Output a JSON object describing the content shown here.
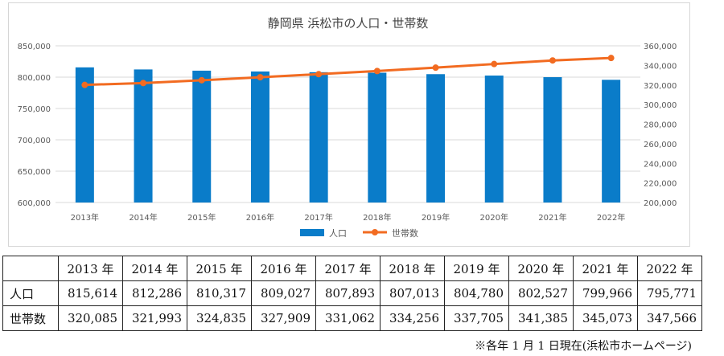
{
  "chart_data": {
    "type": "bar",
    "title": "静岡県 浜松市の人口・世帯数",
    "categories": [
      "2013年",
      "2014年",
      "2015年",
      "2016年",
      "2017年",
      "2018年",
      "2019年",
      "2020年",
      "2021年",
      "2022年"
    ],
    "series": [
      {
        "name": "人口",
        "type": "bar",
        "axis": "left",
        "color": "#0a7cc9",
        "values": [
          815614,
          812286,
          810317,
          809027,
          807893,
          807013,
          804780,
          802527,
          799966,
          795771
        ]
      },
      {
        "name": "世帯数",
        "type": "line",
        "axis": "right",
        "color": "#f26b21",
        "values": [
          320085,
          321993,
          324835,
          327909,
          331062,
          334256,
          337705,
          341385,
          345073,
          347566
        ]
      }
    ],
    "y_left": {
      "min": 600000,
      "max": 850000,
      "ticks": [
        "600,000",
        "650,000",
        "700,000",
        "750,000",
        "800,000",
        "850,000"
      ]
    },
    "y_right": {
      "min": 200000,
      "max": 360000,
      "ticks": [
        "200,000",
        "220,000",
        "240,000",
        "260,000",
        "280,000",
        "300,000",
        "320,000",
        "340,000",
        "360,000"
      ]
    },
    "grid": true,
    "legend": "bottom"
  },
  "table": {
    "headers": [
      "2013 年",
      "2014 年",
      "2015 年",
      "2016 年",
      "2017 年",
      "2018 年",
      "2019 年",
      "2020 年",
      "2021 年",
      "2022 年"
    ],
    "rows": [
      {
        "label": "人口",
        "values": [
          "815,614",
          "812,286",
          "810,317",
          "809,027",
          "807,893",
          "807,013",
          "804,780",
          "802,527",
          "799,966",
          "795,771"
        ]
      },
      {
        "label": "世帯数",
        "values": [
          "320,085",
          "321,993",
          "324,835",
          "327,909",
          "331,062",
          "334,256",
          "337,705",
          "341,385",
          "345,073",
          "347,566"
        ]
      }
    ]
  },
  "footnote": "※各年 1 月 1 日現在(浜松市ホームページ)"
}
